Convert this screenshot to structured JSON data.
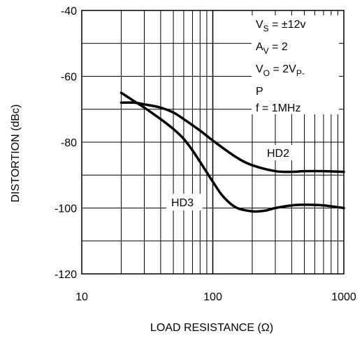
{
  "chart_data": {
    "type": "line",
    "xlabel": "LOAD RESISTANCE (Ω)",
    "ylabel": "DISTORTION (dBc)",
    "x_scale": "log",
    "xlim": [
      10,
      1000
    ],
    "ylim": [
      -120,
      -40
    ],
    "x_ticks": [
      {
        "value": 10,
        "label": "10"
      },
      {
        "value": 100,
        "label": "100"
      },
      {
        "value": 1000,
        "label": "1000"
      }
    ],
    "y_ticks": [
      {
        "value": -40,
        "label": "-40"
      },
      {
        "value": -60,
        "label": "-60"
      },
      {
        "value": -80,
        "label": "-80"
      },
      {
        "value": -100,
        "label": "-100"
      },
      {
        "value": -120,
        "label": "-120"
      }
    ],
    "grid": true,
    "conditions": [
      {
        "main": "V",
        "sub": "S",
        "rest": " = ±12v"
      },
      {
        "main": "A",
        "sub": "V",
        "rest": " = 2"
      },
      {
        "main": "V",
        "sub": "O",
        "rest": " = 2V",
        "sub2": "P-"
      },
      {
        "main": "P",
        "sub": "",
        "rest": ""
      },
      {
        "main": "f = 1MHz",
        "sub": "",
        "rest": ""
      }
    ],
    "series": [
      {
        "name": "HD2",
        "x": [
          20,
          25,
          30,
          40,
          50,
          60,
          80,
          100,
          150,
          200,
          300,
          400,
          500,
          700,
          1000
        ],
        "y": [
          -68,
          -68,
          -68.5,
          -69.5,
          -71,
          -73,
          -76.5,
          -79.5,
          -84.5,
          -87,
          -88.8,
          -89,
          -88.8,
          -88.8,
          -89
        ]
      },
      {
        "name": "HD3",
        "x": [
          20,
          25,
          30,
          40,
          50,
          60,
          70,
          80,
          100,
          120,
          150,
          200,
          250,
          300,
          400,
          500,
          700,
          1000
        ],
        "y": [
          -65,
          -67.5,
          -69.5,
          -73,
          -76,
          -79,
          -82.5,
          -86,
          -92,
          -96.5,
          -99.8,
          -101,
          -100.8,
          -100,
          -99.2,
          -99,
          -99.2,
          -100
        ]
      }
    ]
  }
}
